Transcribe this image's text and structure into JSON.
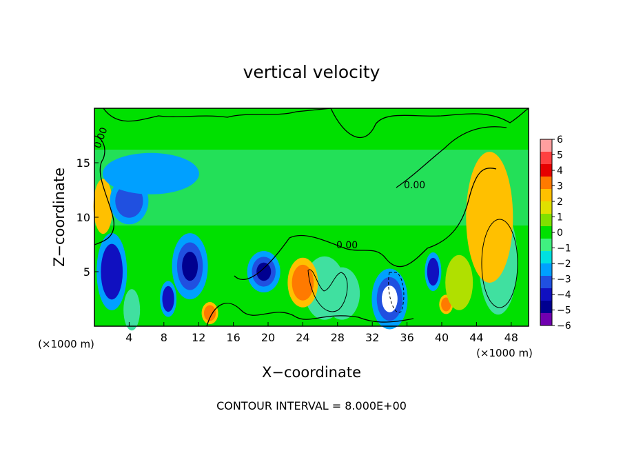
{
  "chart_data": {
    "type": "heatmap",
    "title": "vertical velocity",
    "xlabel": "X−coordinate",
    "ylabel": "Z−coordinate",
    "x_unit_left": "(×1000 m)",
    "x_unit_right": "(×1000 m)",
    "footer": "CONTOUR INTERVAL = 8.000E+00",
    "xlim": [
      0,
      50
    ],
    "ylim": [
      0,
      20
    ],
    "x_ticks": [
      "4",
      "8",
      "12",
      "16",
      "20",
      "24",
      "28",
      "32",
      "36",
      "40",
      "44",
      "48"
    ],
    "y_ticks": [
      "5",
      "10",
      "15"
    ],
    "contour_labels": [
      "0.00",
      "0.00",
      "0.00"
    ],
    "colorbar": {
      "labels": [
        "6",
        "5",
        "4",
        "3",
        "2",
        "1",
        "0",
        "−1",
        "−2",
        "−3",
        "−4",
        "−5",
        "−6"
      ],
      "colors": [
        "#ff9f9f",
        "#ff4040",
        "#e60000",
        "#ff7a00",
        "#ffc000",
        "#e0e000",
        "#80e000",
        "#00e000",
        "#40f080",
        "#00e0e0",
        "#00a0ff",
        "#2050e0",
        "#1010c0",
        "#000090",
        "#7000b0"
      ]
    },
    "features": [
      {
        "x": 46.5,
        "z": 6,
        "w": 0.5
      },
      {
        "x": 45.5,
        "z": 10,
        "w": 2.5
      },
      {
        "x": 1,
        "z": 11,
        "w": 2.5
      },
      {
        "x": 26.5,
        "z": 3.5,
        "w": 0.5
      },
      {
        "x": 28.5,
        "z": 3,
        "w": 0.5
      },
      {
        "x": 4.3,
        "z": 1.5,
        "w": 0.5
      },
      {
        "x": 13.3,
        "z": 1.2,
        "w": 3
      },
      {
        "x": 40.5,
        "z": 2,
        "w": 3
      },
      {
        "x": 24,
        "z": 4,
        "w": 3.5
      },
      {
        "x": 19.5,
        "z": 5,
        "w": -5
      },
      {
        "x": 34,
        "z": 2.5,
        "w": -6
      },
      {
        "x": 11,
        "z": 5.5,
        "w": -5
      },
      {
        "x": 2,
        "z": 5,
        "w": -4.5
      },
      {
        "x": 4,
        "z": 11.5,
        "w": -3.5
      },
      {
        "x": 39,
        "z": 5,
        "w": -4.5
      },
      {
        "x": 8.5,
        "z": 2.5,
        "w": -4
      },
      {
        "x": 6.5,
        "z": 14,
        "w": -2
      },
      {
        "x": 42,
        "z": 4,
        "w": 1.5
      }
    ]
  }
}
